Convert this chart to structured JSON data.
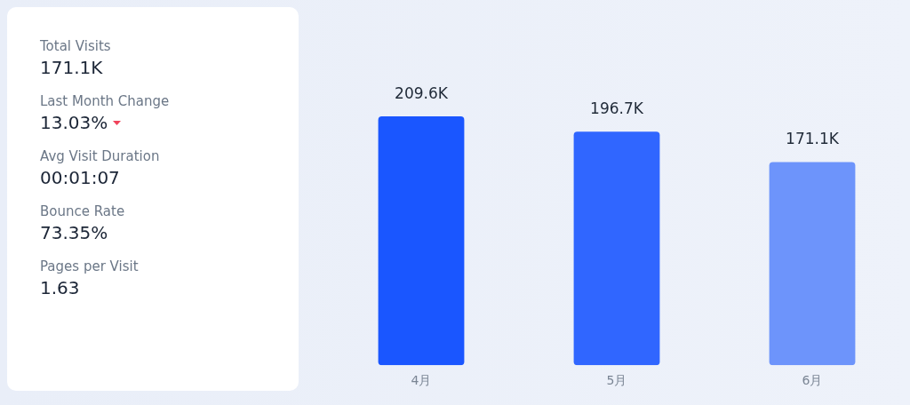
{
  "chart_data": [
    {
      "type": "other",
      "annotations": [
        "Total Visits",
        "171.1K",
        "Last Month Change",
        "13.03%",
        "Avg Visit Duration",
        "00:01:07",
        "Bounce Rate",
        "73.35%",
        "Pages per Visit",
        "1.63"
      ]
    },
    {
      "type": "bar",
      "categories": [
        "4月",
        "5月",
        "6月"
      ],
      "values": [
        209.6,
        196.7,
        171.1
      ],
      "colors": [
        "#1a56ff",
        "#3066ff",
        "#6d94fb"
      ],
      "value_labels": [
        "209.6K",
        "196.7K",
        "171.1K"
      ],
      "grid": false,
      "legend": false
    }
  ]
}
